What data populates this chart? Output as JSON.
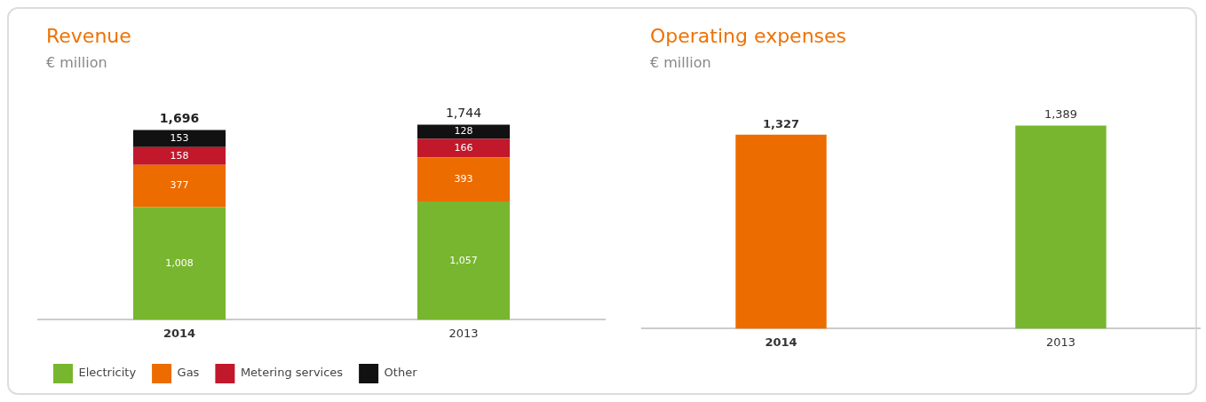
{
  "chart_data": [
    {
      "type": "bar",
      "title": "Revenue",
      "subtitle": "€ million",
      "categories": [
        "2014",
        "2013"
      ],
      "stacked": true,
      "legend": "bottom left",
      "grid": false,
      "totals": [
        "1,696",
        "1,744"
      ],
      "series": [
        {
          "name": "Electricity",
          "color": "#78b62f",
          "values": [
            1008,
            1057
          ],
          "value_labels": [
            "1,008",
            "1,057"
          ]
        },
        {
          "name": "Gas",
          "color": "#ec6c00",
          "values": [
            377,
            393
          ],
          "value_labels": [
            "377",
            "393"
          ]
        },
        {
          "name": "Metering services",
          "color": "#c1182b",
          "values": [
            158,
            166
          ],
          "value_labels": [
            "158",
            "166"
          ]
        },
        {
          "name": "Other",
          "color": "#111111",
          "values": [
            153,
            128
          ],
          "value_labels": [
            "153",
            "128"
          ]
        }
      ]
    },
    {
      "type": "bar",
      "title": "Operating expenses",
      "subtitle": "€ million",
      "categories": [
        "2014",
        "2013"
      ],
      "values": [
        1327,
        1389
      ],
      "colors": [
        "#ec6c00",
        "#78b62f"
      ],
      "value_labels": [
        "1,327",
        "1,389"
      ],
      "grid": false,
      "legend": false
    }
  ]
}
